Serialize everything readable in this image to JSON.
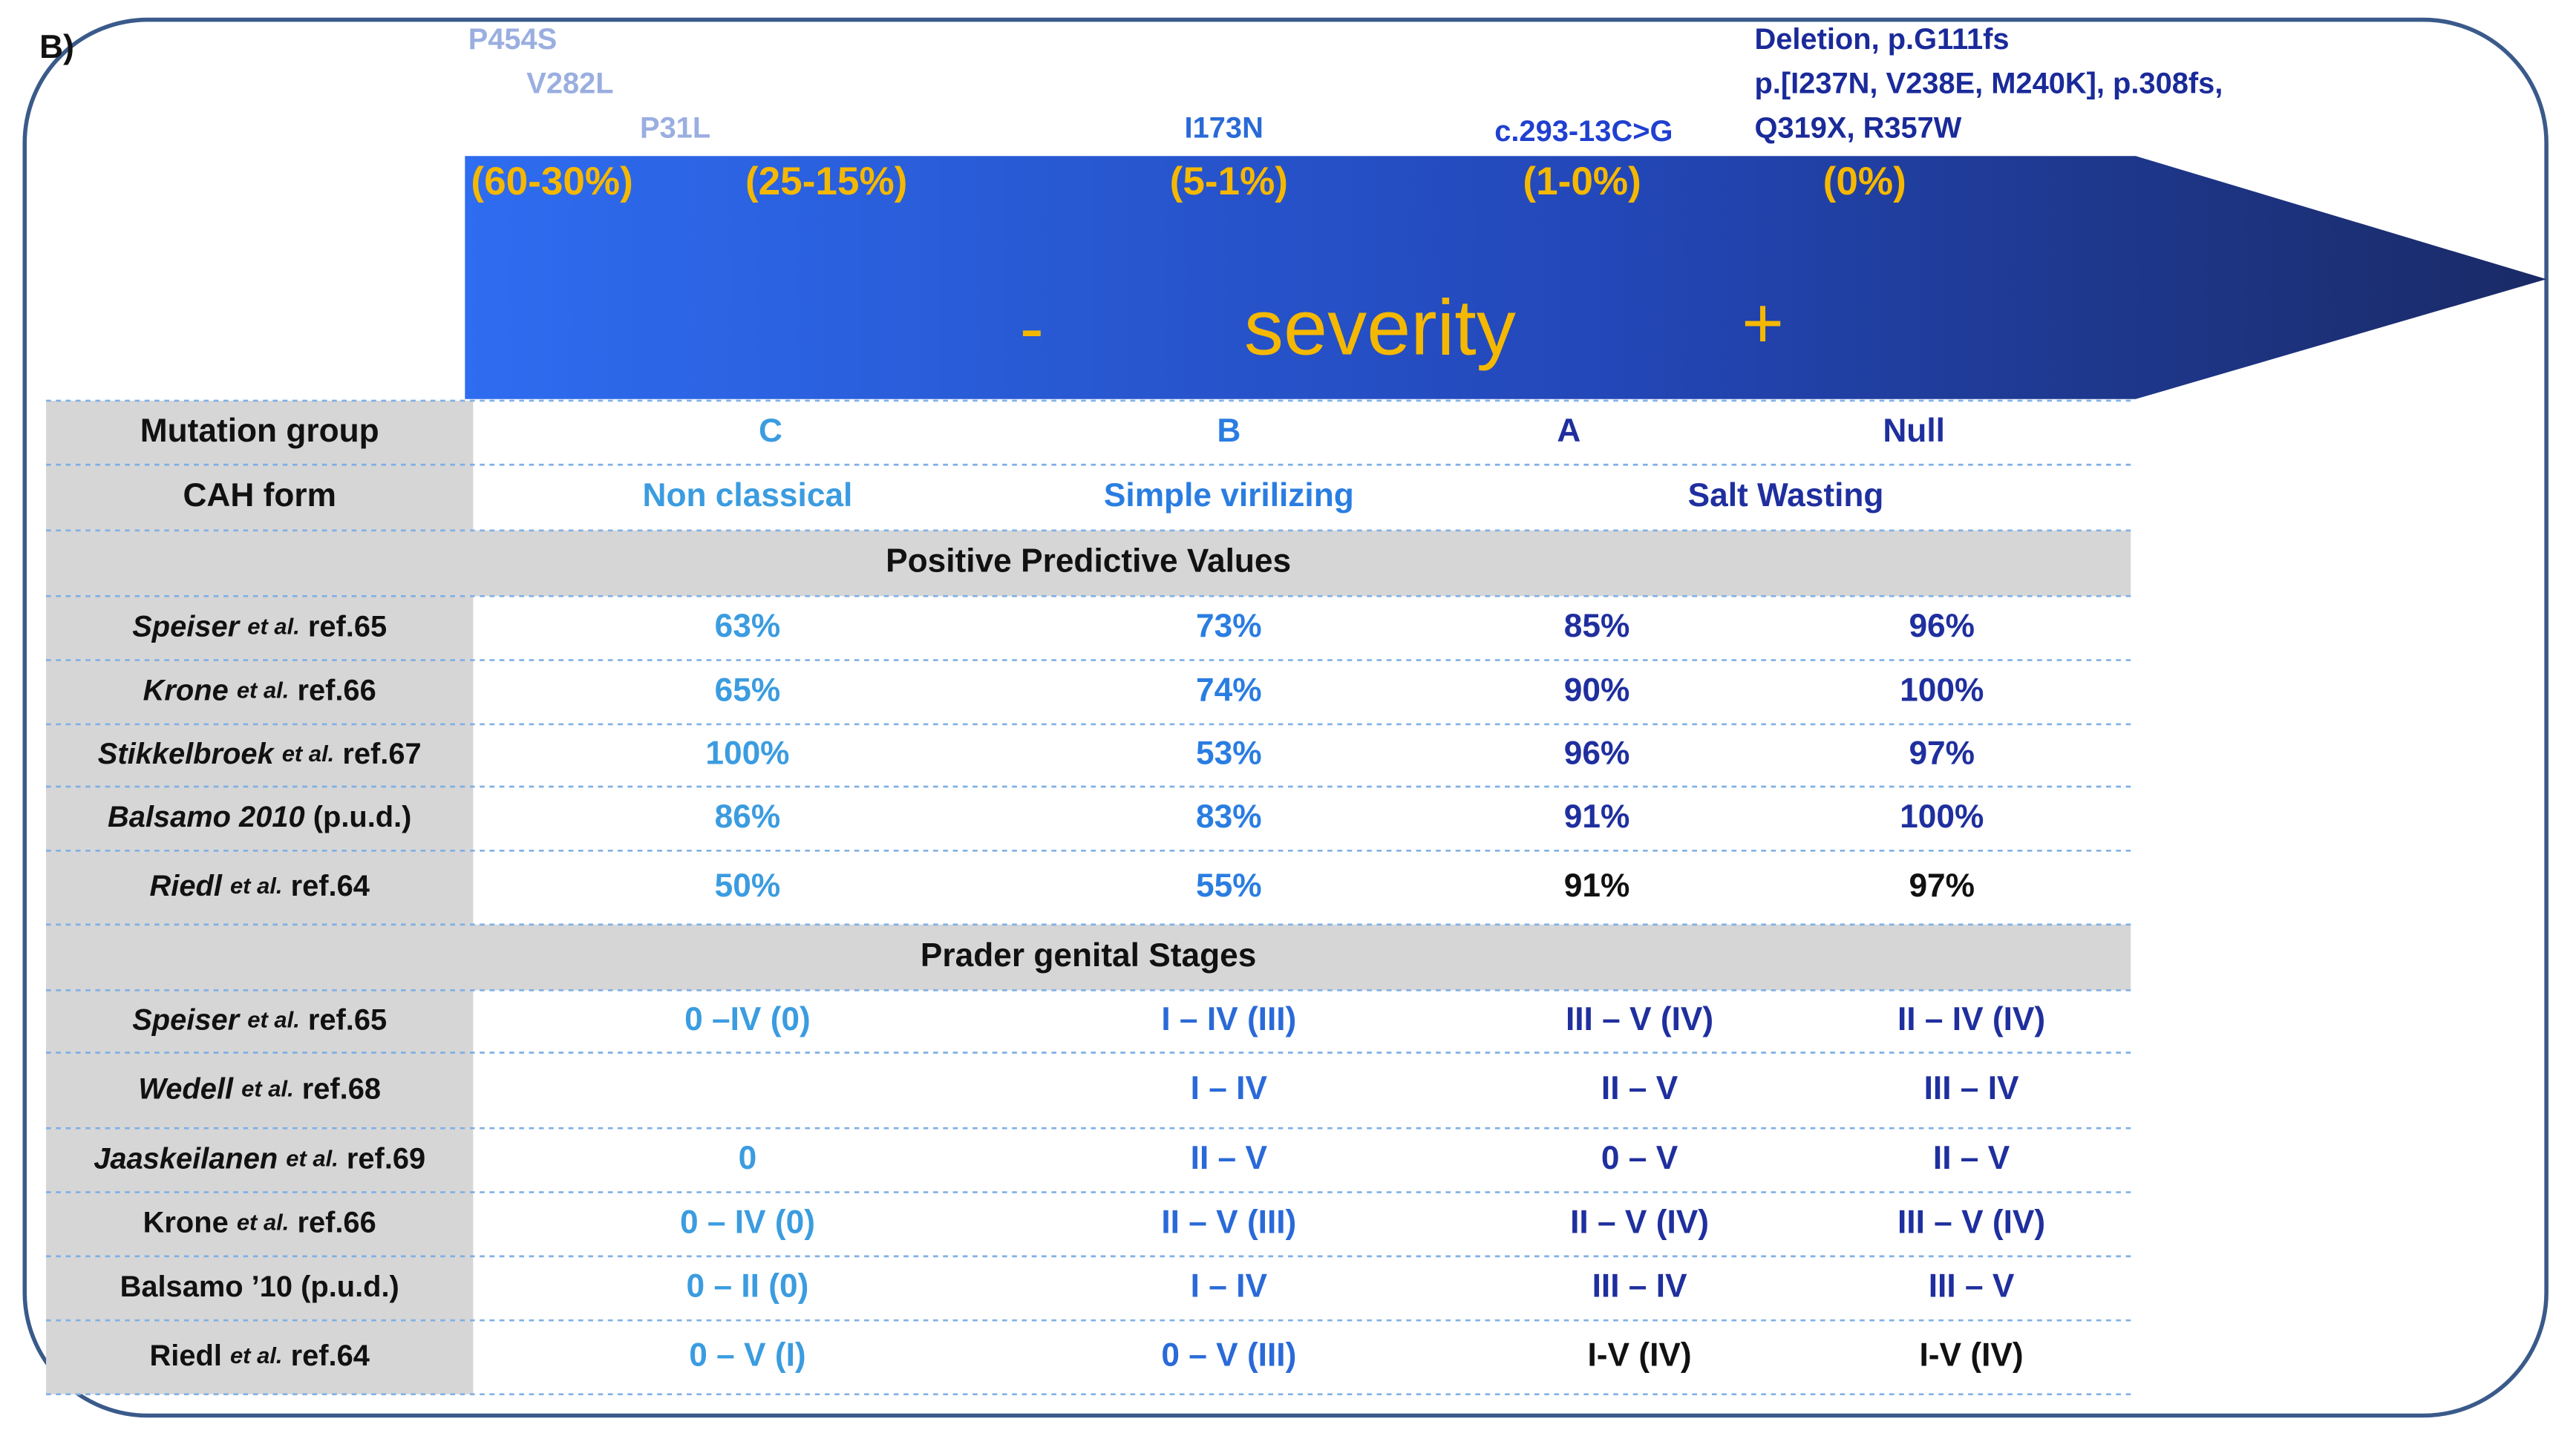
{
  "panel_label": "B)",
  "mutations": [
    {
      "label": "P454S",
      "color": "#9aaee0"
    },
    {
      "label": "V282L",
      "color": "#9aaee0"
    },
    {
      "label": "P31L",
      "color": "#9aaee0"
    },
    {
      "label": "I173N",
      "color": "#2a6ad8"
    },
    {
      "label": "c.293-13C>G",
      "color": "#2040d0"
    },
    {
      "label": "Deletion, p.G111fs",
      "color": "#1a2a9a"
    },
    {
      "label": "p.[I237N, V238E, M240K], p.308fs,",
      "color": "#1a2a9a"
    },
    {
      "label": "Q319X, R357W",
      "color": "#1a2a9a"
    }
  ],
  "percentages": [
    "(60-30%)",
    "(25-15%)",
    "(5-1%)",
    "(1-0%)",
    "(0%)"
  ],
  "arrow": {
    "minus": "-",
    "label": "severity",
    "plus": "+"
  },
  "table": {
    "header_rows": [
      {
        "label": "Mutation group",
        "cells": [
          "C",
          "B",
          "A",
          "Null"
        ],
        "colors": [
          "#3b9ce0",
          "#2a7de1",
          "#1f2f9e",
          "#1f2f9e"
        ]
      },
      {
        "label": "CAH form",
        "cells": [
          "Non classical",
          "Simple virilizing",
          "Salt Wasting"
        ],
        "colors": [
          "#3b9ce0",
          "#2a7de1",
          "#1f2f9e"
        ]
      }
    ],
    "sections": [
      {
        "title": "Positive Predictive Values",
        "rows": [
          {
            "label": [
              "Speiser",
              "et al.",
              "ref.65"
            ],
            "italic": true,
            "cells": [
              "63%",
              "73%",
              "85%",
              "96%"
            ],
            "colors": [
              "#3b9ce0",
              "#2a7de1",
              "#1f2f9e",
              "#1f2f9e"
            ]
          },
          {
            "label": [
              "Krone",
              "et al.",
              "ref.66"
            ],
            "italic": true,
            "cells": [
              "65%",
              "74%",
              "90%",
              "100%"
            ],
            "colors": [
              "#3b9ce0",
              "#2a7de1",
              "#1f2f9e",
              "#1f2f9e"
            ]
          },
          {
            "label": [
              "Stikkelbroek",
              "et al.",
              "ref.67"
            ],
            "italic": true,
            "cells": [
              "100%",
              "53%",
              "96%",
              "97%"
            ],
            "colors": [
              "#3b9ce0",
              "#2a7de1",
              "#1f2f9e",
              "#1f2f9e"
            ]
          },
          {
            "label": [
              "Balsamo 2010",
              "(p.u.d.)"
            ],
            "italic": true,
            "cells": [
              "86%",
              "83%",
              "91%",
              "100%"
            ],
            "colors": [
              "#3b9ce0",
              "#2a7de1",
              "#1f2f9e",
              "#1f2f9e"
            ]
          },
          {
            "label": [
              "Riedl",
              "et al.",
              "ref.64"
            ],
            "italic": true,
            "cells": [
              "50%",
              "55%",
              "91%",
              "97%"
            ],
            "colors": [
              "#3b9ce0",
              "#2a7de1",
              "#111111",
              "#111111"
            ]
          }
        ]
      },
      {
        "title": "Prader genital Stages",
        "rows": [
          {
            "label": [
              "Speiser",
              "et al.",
              "ref.65"
            ],
            "italic": true,
            "cells": [
              "0 –IV  (0)",
              "I – IV (III)",
              "III – V (IV)",
              "II – IV (IV)"
            ],
            "colors": [
              "#3b9ce0",
              "#2a6ad8",
              "#1f2f9e",
              "#1f2f9e"
            ]
          },
          {
            "label": [
              "Wedell",
              "et al.",
              "ref.68"
            ],
            "italic": true,
            "cells": [
              null,
              "I – IV",
              "II – V",
              "III – IV"
            ],
            "colors": [
              "#3b9ce0",
              "#2a6ad8",
              "#1f2f9e",
              "#1f2f9e"
            ]
          },
          {
            "label": [
              "Jaaskeilanen",
              "et al.",
              "ref.69"
            ],
            "italic": true,
            "cells": [
              "0",
              "II – V",
              "0 – V",
              "II – V"
            ],
            "colors": [
              "#3b9ce0",
              "#2a6ad8",
              "#1f2f9e",
              "#1f2f9e"
            ]
          },
          {
            "label": [
              "Krone",
              "et al.",
              "ref.66"
            ],
            "italic": false,
            "cells": [
              "0 – IV (0)",
              "II – V (III)",
              "II – V  (IV)",
              "III – V (IV)"
            ],
            "colors": [
              "#3b9ce0",
              "#2a6ad8",
              "#1f2f9e",
              "#1f2f9e"
            ]
          },
          {
            "label": [
              "Balsamo ’10 (p.u.d.)"
            ],
            "italic": false,
            "cells": [
              "0 – II (0)",
              "I – IV",
              "III – IV",
              "III – V"
            ],
            "colors": [
              "#3b9ce0",
              "#2a6ad8",
              "#1f2f9e",
              "#1f2f9e"
            ]
          },
          {
            "label": [
              "Riedl",
              "et al.",
              "ref.64"
            ],
            "italic": false,
            "cells": [
              "0 – V (I)",
              "0 – V (III)",
              "I-V (IV)",
              "I-V (IV)"
            ],
            "colors": [
              "#3b9ce0",
              "#2a6ad8",
              "#111111",
              "#111111"
            ]
          }
        ]
      }
    ]
  }
}
